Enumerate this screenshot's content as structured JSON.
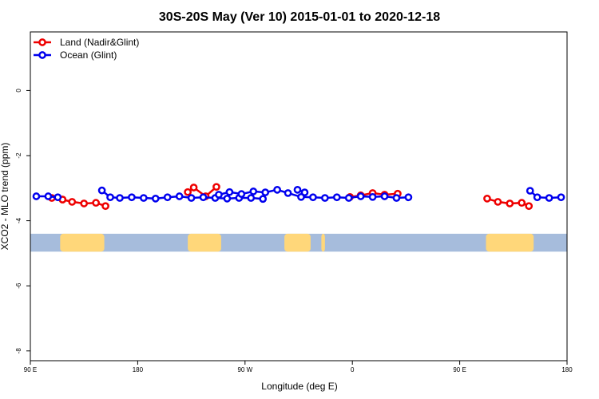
{
  "chart_data": {
    "type": "line",
    "title": "30S-20S May (Ver 10)   2015-01-01 to 2020-12-18",
    "xlabel": "Longitude (deg E)",
    "ylabel": "XCO2 - MLO trend (ppm)",
    "xlim": [
      90,
      540
    ],
    "ylim": [
      -8.3,
      1.8
    ],
    "x_ticks": [
      {
        "value": 90,
        "label": "90 E"
      },
      {
        "value": 180,
        "label": "180"
      },
      {
        "value": 270,
        "label": "90 W"
      },
      {
        "value": 360,
        "label": "0"
      },
      {
        "value": 450,
        "label": "90 E"
      },
      {
        "value": 540,
        "label": "180"
      }
    ],
    "y_ticks": [
      {
        "value": 0,
        "label": "0"
      },
      {
        "value": -2,
        "label": "-2"
      },
      {
        "value": -4,
        "label": "-4"
      },
      {
        "value": -6,
        "label": "-6"
      },
      {
        "value": -8,
        "label": "-8"
      }
    ],
    "legend": {
      "position": "top-left"
    },
    "series": [
      {
        "name": "Land (Nadir&Glint)",
        "color": "#ee0000",
        "segments": [
          [
            [
              117,
              -3.35
            ],
            [
              125,
              -3.42
            ],
            [
              135,
              -3.47
            ],
            [
              145,
              -3.45
            ],
            [
              153,
              -3.55
            ]
          ],
          [
            [
              222,
              -3.12
            ],
            [
              227,
              -2.98
            ],
            [
              237,
              -3.25
            ],
            [
              246,
              -2.96
            ]
          ],
          [
            [
              108,
              -3.3
            ],
            [
              117,
              -3.35
            ]
          ],
          [
            [
              358,
              -3.27
            ],
            [
              367,
              -3.22
            ],
            [
              377,
              -3.15
            ],
            [
              387,
              -3.2
            ],
            [
              398,
              -3.17
            ]
          ],
          [
            [
              473,
              -3.32
            ],
            [
              482,
              -3.42
            ],
            [
              492,
              -3.47
            ],
            [
              502,
              -3.45
            ],
            [
              508,
              -3.55
            ]
          ]
        ]
      },
      {
        "name": "Ocean (Glint)",
        "color": "#0000ee",
        "segments": [
          [
            [
              95,
              -3.25
            ],
            [
              105,
              -3.25
            ],
            [
              113,
              -3.28
            ]
          ],
          [
            [
              150,
              -3.07
            ],
            [
              157,
              -3.28
            ],
            [
              165,
              -3.3
            ],
            [
              175,
              -3.28
            ],
            [
              185,
              -3.3
            ],
            [
              195,
              -3.32
            ],
            [
              205,
              -3.28
            ],
            [
              215,
              -3.25
            ],
            [
              225,
              -3.3
            ],
            [
              235,
              -3.28
            ],
            [
              245,
              -3.3
            ],
            [
              255,
              -3.32
            ],
            [
              265,
              -3.3
            ],
            [
              275,
              -3.3
            ],
            [
              285,
              -3.33
            ]
          ],
          [
            [
              248,
              -3.2
            ],
            [
              257,
              -3.12
            ],
            [
              267,
              -3.18
            ],
            [
              277,
              -3.1
            ],
            [
              287,
              -3.13
            ],
            [
              297,
              -3.05
            ],
            [
              306,
              -3.15
            ],
            [
              317,
              -3.27
            ],
            [
              327,
              -3.28
            ],
            [
              337,
              -3.3
            ],
            [
              347,
              -3.28
            ],
            [
              357,
              -3.3
            ],
            [
              367,
              -3.25
            ],
            [
              377,
              -3.27
            ],
            [
              387,
              -3.25
            ],
            [
              397,
              -3.3
            ],
            [
              407,
              -3.28
            ]
          ],
          [
            [
              314,
              -3.05
            ],
            [
              320,
              -3.13
            ]
          ],
          [
            [
              509,
              -3.08
            ],
            [
              515,
              -3.28
            ],
            [
              525,
              -3.3
            ],
            [
              535,
              -3.28
            ]
          ]
        ]
      }
    ],
    "landmask": {
      "band_y": [
        -4.4,
        -4.95
      ],
      "ocean_color": "#a6bcdc",
      "land_color": "#ffd77a",
      "land_ranges": [
        [
          115,
          152
        ],
        [
          222,
          250
        ],
        [
          303,
          325
        ],
        [
          334,
          337
        ],
        [
          472,
          512
        ]
      ]
    }
  }
}
